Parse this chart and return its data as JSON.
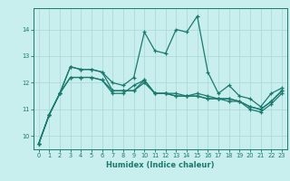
{
  "xlabel": "Humidex (Indice chaleur)",
  "background_color": "#c8eeed",
  "grid_color": "#a8d8d5",
  "line_color": "#1a7a6e",
  "xlim": [
    -0.5,
    23.5
  ],
  "ylim": [
    9.5,
    14.8
  ],
  "yticks": [
    10,
    11,
    12,
    13,
    14
  ],
  "xticks": [
    0,
    1,
    2,
    3,
    4,
    5,
    6,
    7,
    8,
    9,
    10,
    11,
    12,
    13,
    14,
    15,
    16,
    17,
    18,
    19,
    20,
    21,
    22,
    23
  ],
  "lines": [
    [
      9.7,
      10.8,
      11.6,
      12.6,
      12.5,
      12.5,
      12.4,
      12.0,
      11.9,
      12.2,
      13.9,
      13.2,
      13.1,
      14.0,
      13.9,
      14.5,
      12.4,
      11.6,
      11.9,
      11.5,
      11.4,
      11.1,
      11.6,
      11.8
    ],
    [
      9.7,
      10.8,
      11.6,
      12.6,
      12.5,
      12.5,
      12.4,
      11.7,
      11.7,
      11.7,
      12.1,
      11.6,
      11.6,
      11.6,
      11.5,
      11.6,
      11.5,
      11.4,
      11.4,
      11.3,
      11.1,
      11.0,
      11.3,
      11.7
    ],
    [
      9.7,
      10.8,
      11.6,
      12.2,
      12.2,
      12.2,
      12.1,
      11.7,
      11.7,
      11.7,
      12.0,
      11.6,
      11.6,
      11.5,
      11.5,
      11.5,
      11.4,
      11.4,
      11.4,
      11.3,
      11.1,
      11.0,
      11.3,
      11.7
    ],
    [
      9.7,
      10.8,
      11.6,
      12.2,
      12.2,
      12.2,
      12.1,
      11.6,
      11.6,
      11.9,
      12.1,
      11.6,
      11.6,
      11.5,
      11.5,
      11.5,
      11.4,
      11.4,
      11.3,
      11.3,
      11.0,
      10.9,
      11.2,
      11.6
    ]
  ]
}
